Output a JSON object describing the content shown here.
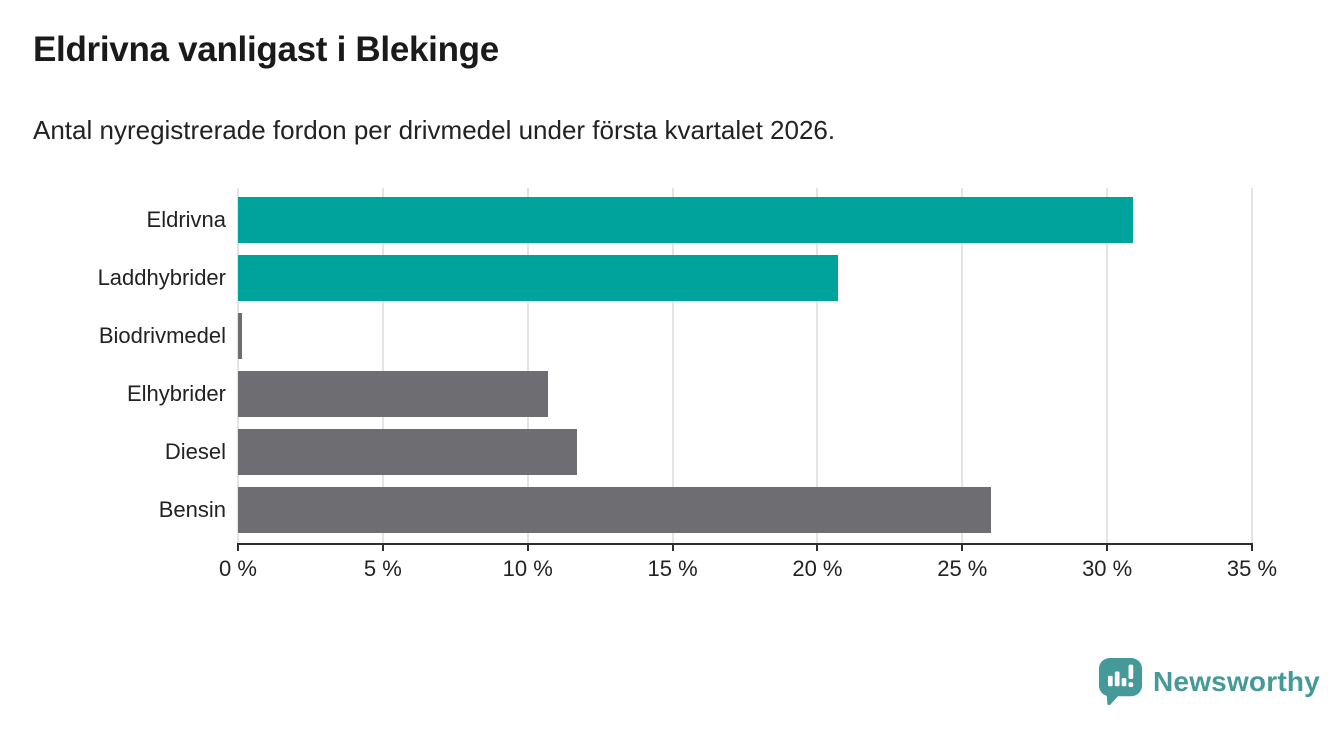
{
  "title": "Eldrivna vanligast i Blekinge",
  "subtitle": "Antal nyregistrerade fordon per drivmedel under första kvartalet 2026.",
  "chart_data": {
    "type": "bar",
    "orientation": "horizontal",
    "title": "Eldrivna vanligast i Blekinge",
    "subtitle": "Antal nyregistrerade fordon per drivmedel under första kvartalet 2026.",
    "categories": [
      "Eldrivna",
      "Laddhybrider",
      "Biodrivmedel",
      "Elhybrider",
      "Diesel",
      "Bensin"
    ],
    "values": [
      30.9,
      20.7,
      0.15,
      10.7,
      11.7,
      26.0
    ],
    "bar_colors": [
      "#00a39b",
      "#00a39b",
      "#6d6d72",
      "#6d6d72",
      "#6d6d72",
      "#6d6d72"
    ],
    "xlabel": "",
    "ylabel": "",
    "xlim": [
      0,
      35
    ],
    "x_ticks": [
      0,
      5,
      10,
      15,
      20,
      25,
      30,
      35
    ],
    "x_tick_labels": [
      "0 %",
      "5 %",
      "10 %",
      "15 %",
      "20 %",
      "25 %",
      "30 %",
      "35 %"
    ],
    "grid": "vertical-gridlines-on",
    "legend": "none"
  },
  "colors": {
    "accent_teal": "#00a39b",
    "neutral_gray": "#6d6d72",
    "axis": "#2e2e2e",
    "gridline": "#e4e4e4",
    "title_text": "#1a1a1a",
    "body_text": "#222222",
    "logo_teal": "#459a99"
  },
  "branding": {
    "logo_text": "Newsworthy",
    "logo_icon": "newsworthy-speech-bubble-bar-chart-icon"
  }
}
